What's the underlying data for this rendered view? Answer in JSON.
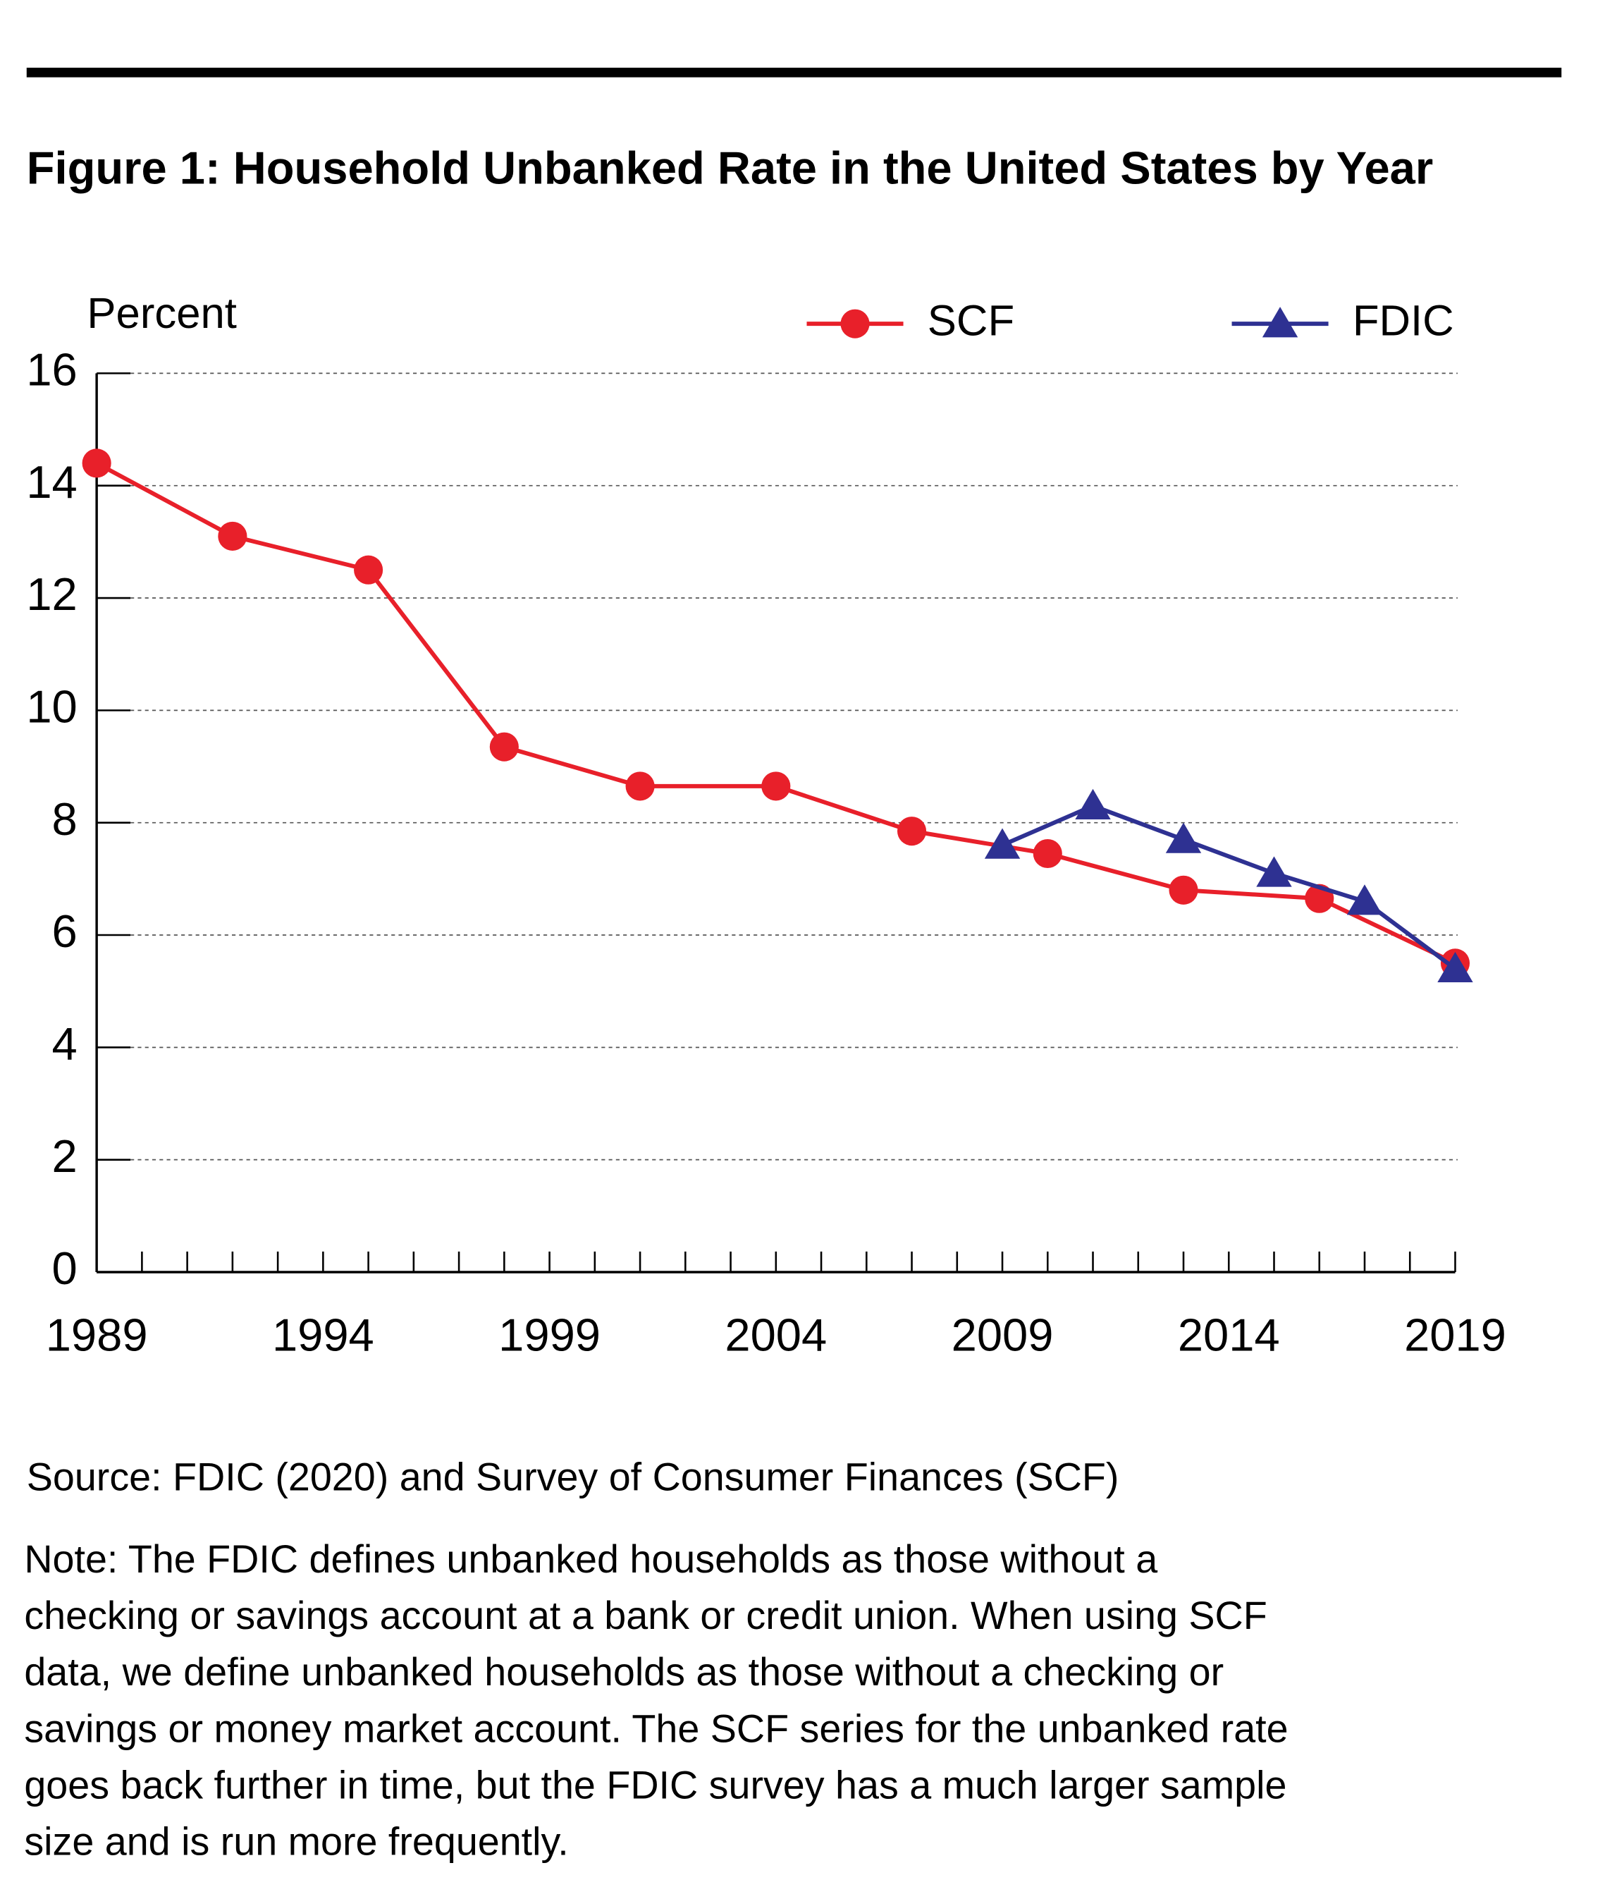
{
  "chart_data": {
    "type": "line",
    "title": "Figure 1: Household Unbanked Rate in the United States by Year",
    "y_label": "Percent",
    "series": [
      {
        "name": "SCF",
        "color": "#e8202a",
        "marker": "circle",
        "x": [
          1989,
          1992,
          1995,
          1998,
          2001,
          2004,
          2007,
          2010,
          2013,
          2016,
          2019
        ],
        "values": [
          14.4,
          13.1,
          12.5,
          9.35,
          8.65,
          8.65,
          7.85,
          7.45,
          6.8,
          6.65,
          5.5
        ]
      },
      {
        "name": "FDIC",
        "color": "#2e3192",
        "marker": "triangle",
        "x": [
          2009,
          2011,
          2013,
          2015,
          2017,
          2019
        ],
        "values": [
          7.6,
          8.3,
          7.7,
          7.1,
          6.6,
          5.4
        ]
      }
    ],
    "xlim": [
      1989,
      2019
    ],
    "xticks": [
      1989,
      1994,
      1999,
      2004,
      2009,
      2014,
      2019
    ],
    "ylim": [
      0,
      16
    ],
    "yticks": [
      0,
      2,
      4,
      6,
      8,
      10,
      12,
      14,
      16
    ],
    "grid": true,
    "source": "Source: FDIC (2020) and Survey of Consumer Finances (SCF)",
    "note": [
      "Note: The FDIC defines unbanked households as those without a",
      "checking or savings account at a bank or credit union. When using SCF",
      "data, we define unbanked households as those without a checking or",
      "savings or money market account. The SCF series for the unbanked rate",
      "goes back further in time, but the FDIC survey has a much larger sample",
      "size and is run more frequently."
    ]
  }
}
